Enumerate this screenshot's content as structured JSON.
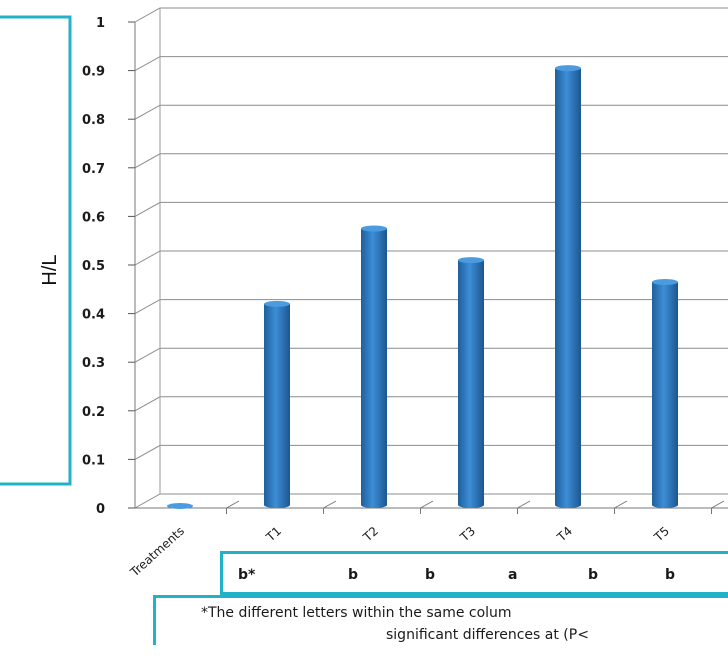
{
  "chart_data": {
    "type": "bar",
    "categories": [
      "Treatments",
      "T1",
      "T2",
      "T3",
      "T4",
      "T5"
    ],
    "values": [
      0,
      0.42,
      0.575,
      0.51,
      0.905,
      0.465
    ],
    "ylabel": "H/L",
    "ylim": [
      0,
      1
    ],
    "yticks": [
      "0",
      "0.1",
      "0.2",
      "0.3",
      "0.4",
      "0.5",
      "0.6",
      "0.7",
      "0.8",
      "0.9",
      "1"
    ],
    "grid": true,
    "bar_color": "#2e75b6",
    "accent_color": "#22b2c8"
  },
  "letters": [
    "b*",
    "b",
    "b",
    "a",
    "b",
    "b"
  ],
  "footnote": {
    "line1": "*The different letters within the same colum",
    "line2": "significant differences at (P<"
  }
}
